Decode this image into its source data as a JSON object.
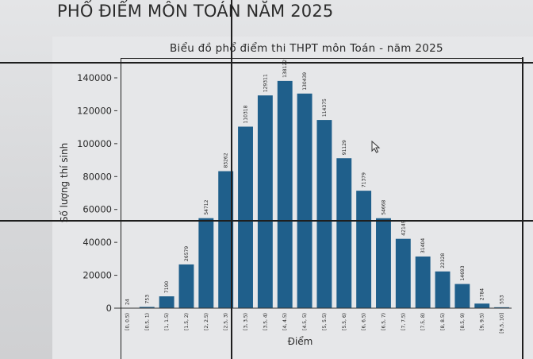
{
  "slide": {
    "title": "PHỔ ĐIỂM MÔN TOÁN NĂM 2025"
  },
  "chart_data": {
    "type": "bar",
    "title": "Biểu đồ phổ điểm thi THPT môn Toán - năm 2025",
    "xlabel": "Điểm",
    "ylabel": "Số lượng thí sinh",
    "ylim": [
      0,
      140000
    ],
    "yticks": [
      0,
      20000,
      40000,
      60000,
      80000,
      100000,
      120000,
      140000
    ],
    "categories": [
      "[0, 0.5)",
      "[0.5, 1)",
      "[1, 1.5)",
      "[1.5, 2)",
      "[2, 2.5)",
      "[2.5, 3)",
      "[3, 3.5)",
      "[3.5, 4)",
      "[4, 4.5)",
      "[4.5, 5)",
      "[5, 5.5)",
      "[5.5, 6)",
      "[6, 6.5)",
      "[6.5, 7)",
      "[7, 7.5)",
      "[7.5, 8)",
      "[8, 8.5)",
      "[8.5, 9)",
      "[9, 9.5)",
      "[9.5, 10]"
    ],
    "values": [
      24,
      753,
      7190,
      26579,
      54712,
      83262,
      110318,
      129311,
      138122,
      130439,
      114375,
      91129,
      71379,
      54668,
      42149,
      31404,
      22328,
      14693,
      2784,
      553
    ],
    "bar_color": "#1f5f8b",
    "grid": false
  }
}
